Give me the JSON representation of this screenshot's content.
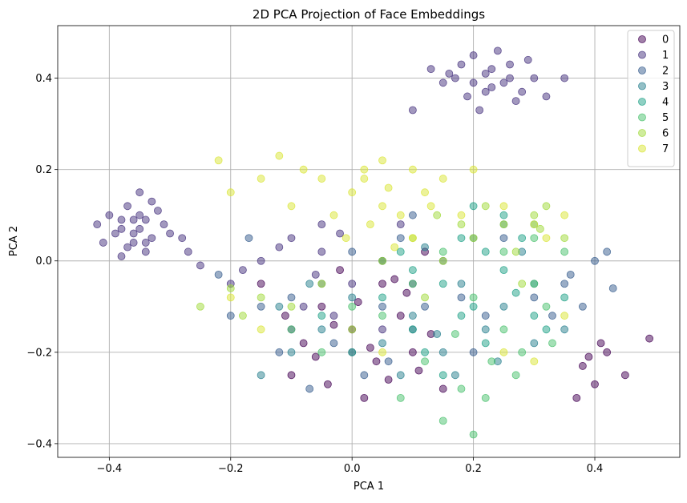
{
  "chart_data": {
    "type": "scatter",
    "title": "2D PCA Projection of Face Embeddings",
    "xlabel": "PCA 1",
    "ylabel": "PCA 2",
    "xlim": [
      -0.485,
      0.54
    ],
    "ylim": [
      -0.43,
      0.515
    ],
    "xticks": [
      -0.4,
      -0.2,
      0.0,
      0.2,
      0.4
    ],
    "xtick_labels": [
      "−0.4",
      "−0.2",
      "0.0",
      "0.2",
      "0.4"
    ],
    "yticks": [
      -0.4,
      -0.2,
      0.0,
      0.2,
      0.4
    ],
    "ytick_labels": [
      "−0.4",
      "−0.2",
      "0.0",
      "0.2",
      "0.4"
    ],
    "grid": true,
    "legend_position": "top-right",
    "marker_alpha": 0.5,
    "colormap": "viridis",
    "series": [
      {
        "name": "0",
        "color": "#440154",
        "points": [
          [
            0.0,
            -0.15
          ],
          [
            -0.05,
            -0.1
          ],
          [
            0.05,
            -0.05
          ],
          [
            0.1,
            -0.2
          ],
          [
            -0.1,
            -0.25
          ],
          [
            0.02,
            -0.3
          ],
          [
            0.08,
            -0.12
          ],
          [
            -0.02,
            -0.02
          ],
          [
            0.15,
            -0.28
          ],
          [
            -0.08,
            -0.18
          ],
          [
            0.12,
            0.02
          ],
          [
            0.04,
            -0.22
          ],
          [
            -0.15,
            -0.05
          ],
          [
            0.06,
            -0.26
          ],
          [
            0.38,
            -0.23
          ],
          [
            0.42,
            -0.2
          ],
          [
            0.45,
            -0.25
          ],
          [
            0.49,
            -0.17
          ],
          [
            0.4,
            -0.27
          ],
          [
            0.37,
            -0.3
          ],
          [
            0.41,
            -0.18
          ],
          [
            0.39,
            -0.21
          ],
          [
            -0.03,
            -0.14
          ],
          [
            0.09,
            -0.07
          ],
          [
            0.01,
            -0.09
          ],
          [
            -0.06,
            -0.21
          ],
          [
            0.13,
            -0.16
          ],
          [
            0.03,
            -0.19
          ],
          [
            0.07,
            -0.04
          ],
          [
            -0.11,
            -0.12
          ],
          [
            0.11,
            -0.24
          ],
          [
            -0.04,
            -0.27
          ]
        ]
      },
      {
        "name": "1",
        "color": "#46327e",
        "points": [
          [
            0.13,
            0.42
          ],
          [
            0.17,
            0.4
          ],
          [
            0.2,
            0.45
          ],
          [
            0.23,
            0.38
          ],
          [
            0.26,
            0.43
          ],
          [
            0.19,
            0.36
          ],
          [
            0.22,
            0.41
          ],
          [
            0.28,
            0.37
          ],
          [
            0.3,
            0.4
          ],
          [
            0.15,
            0.39
          ],
          [
            0.24,
            0.46
          ],
          [
            0.21,
            0.33
          ],
          [
            0.27,
            0.35
          ],
          [
            0.18,
            0.43
          ],
          [
            0.25,
            0.39
          ],
          [
            0.32,
            0.36
          ],
          [
            0.1,
            0.33
          ],
          [
            0.35,
            0.4
          ],
          [
            0.2,
            0.39
          ],
          [
            0.23,
            0.42
          ],
          [
            0.16,
            0.41
          ],
          [
            0.29,
            0.44
          ],
          [
            0.22,
            0.37
          ],
          [
            0.26,
            0.4
          ],
          [
            -0.38,
            0.07
          ],
          [
            -0.35,
            0.1
          ],
          [
            -0.33,
            0.05
          ],
          [
            -0.36,
            0.04
          ],
          [
            -0.4,
            0.1
          ],
          [
            -0.31,
            0.08
          ],
          [
            -0.37,
            0.12
          ],
          [
            -0.34,
            0.02
          ],
          [
            -0.39,
            0.06
          ],
          [
            -0.32,
            0.11
          ],
          [
            -0.35,
            0.07
          ],
          [
            -0.36,
            0.09
          ],
          [
            -0.41,
            0.04
          ],
          [
            -0.33,
            0.13
          ],
          [
            -0.3,
            0.06
          ],
          [
            -0.38,
            0.01
          ],
          [
            -0.35,
            0.15
          ],
          [
            -0.42,
            0.08
          ],
          [
            -0.28,
            0.05
          ],
          [
            -0.34,
            0.09
          ],
          [
            -0.37,
            0.03
          ],
          [
            -0.36,
            0.06
          ],
          [
            -0.34,
            0.04
          ],
          [
            -0.38,
            0.09
          ],
          [
            -0.27,
            0.02
          ],
          [
            -0.25,
            -0.01
          ],
          [
            -0.1,
            0.05
          ],
          [
            -0.05,
            0.02
          ],
          [
            0.0,
            -0.05
          ],
          [
            -0.15,
            0.0
          ],
          [
            -0.08,
            -0.1
          ],
          [
            -0.12,
            0.03
          ],
          [
            -0.06,
            -0.03
          ],
          [
            0.05,
            0.0
          ],
          [
            -0.02,
            0.06
          ],
          [
            -0.18,
            -0.02
          ],
          [
            -0.2,
            -0.05
          ],
          [
            -0.03,
            -0.12
          ],
          [
            0.0,
            -0.2
          ],
          [
            0.05,
            -0.15
          ],
          [
            -0.1,
            -0.15
          ],
          [
            0.08,
            0.08
          ],
          [
            0.1,
            -0.05
          ],
          [
            -0.05,
            0.08
          ]
        ]
      },
      {
        "name": "2",
        "color": "#365c8d",
        "points": [
          [
            -0.05,
            -0.05
          ],
          [
            0.05,
            -0.1
          ],
          [
            -0.1,
            -0.08
          ],
          [
            0.0,
            0.02
          ],
          [
            0.1,
            -0.15
          ],
          [
            -0.15,
            -0.1
          ],
          [
            0.08,
            0.05
          ],
          [
            -0.03,
            -0.18
          ],
          [
            0.12,
            -0.1
          ],
          [
            0.15,
            0.0
          ],
          [
            0.3,
            -0.08
          ],
          [
            0.35,
            -0.05
          ],
          [
            0.4,
            0.0
          ],
          [
            0.38,
            -0.1
          ],
          [
            0.42,
            0.02
          ],
          [
            0.43,
            -0.06
          ],
          [
            0.33,
            -0.12
          ],
          [
            0.36,
            -0.03
          ],
          [
            -0.2,
            -0.12
          ],
          [
            0.02,
            -0.25
          ],
          [
            -0.07,
            -0.28
          ],
          [
            0.18,
            -0.08
          ],
          [
            -0.12,
            -0.2
          ],
          [
            0.06,
            -0.22
          ],
          [
            0.2,
            -0.2
          ],
          [
            -0.17,
            0.05
          ],
          [
            -0.22,
            -0.03
          ],
          [
            0.25,
            0.05
          ],
          [
            0.22,
            -0.12
          ],
          [
            0.1,
            0.1
          ]
        ]
      },
      {
        "name": "3",
        "color": "#277f8e",
        "points": [
          [
            0.1,
            -0.12
          ],
          [
            0.18,
            -0.05
          ],
          [
            0.05,
            -0.18
          ],
          [
            -0.05,
            -0.15
          ],
          [
            0.15,
            -0.2
          ],
          [
            0.25,
            -0.1
          ],
          [
            0.12,
            0.03
          ],
          [
            -0.1,
            -0.2
          ],
          [
            0.22,
            -0.15
          ],
          [
            0.2,
            0.05
          ],
          [
            0.3,
            -0.18
          ],
          [
            0.08,
            -0.25
          ],
          [
            -0.15,
            -0.25
          ],
          [
            0.25,
            0.08
          ],
          [
            0.28,
            0.02
          ],
          [
            0.35,
            -0.15
          ],
          [
            0.0,
            -0.08
          ],
          [
            -0.07,
            -0.05
          ],
          [
            0.17,
            -0.25
          ],
          [
            0.05,
            0.0
          ],
          [
            -0.12,
            -0.1
          ],
          [
            0.3,
            -0.05
          ],
          [
            0.14,
            -0.16
          ],
          [
            0.24,
            -0.22
          ]
        ]
      },
      {
        "name": "4",
        "color": "#1fa187",
        "points": [
          [
            0.15,
            -0.05
          ],
          [
            0.2,
            -0.1
          ],
          [
            0.25,
            -0.02
          ],
          [
            0.1,
            -0.15
          ],
          [
            0.3,
            -0.12
          ],
          [
            0.05,
            -0.08
          ],
          [
            0.18,
            0.05
          ],
          [
            0.22,
            -0.18
          ],
          [
            0.28,
            0.05
          ],
          [
            0.12,
            -0.2
          ],
          [
            0.35,
            -0.08
          ],
          [
            0.08,
            0.02
          ],
          [
            0.25,
            0.1
          ],
          [
            0.2,
            0.12
          ],
          [
            0.3,
            0.08
          ],
          [
            -0.05,
            -0.12
          ],
          [
            0.0,
            -0.2
          ],
          [
            0.15,
            -0.25
          ],
          [
            0.32,
            -0.15
          ],
          [
            0.18,
            -0.12
          ],
          [
            0.22,
            0.02
          ],
          [
            0.27,
            -0.07
          ],
          [
            0.1,
            -0.02
          ]
        ]
      },
      {
        "name": "5",
        "color": "#4ac16d",
        "points": [
          [
            0.1,
            -0.05
          ],
          [
            0.15,
            0.02
          ],
          [
            0.2,
            -0.08
          ],
          [
            0.05,
            -0.12
          ],
          [
            0.25,
            -0.15
          ],
          [
            0.3,
            -0.05
          ],
          [
            0.12,
            -0.22
          ],
          [
            0.18,
            -0.28
          ],
          [
            0.22,
            -0.3
          ],
          [
            0.28,
            -0.2
          ],
          [
            0.32,
            -0.1
          ],
          [
            0.35,
            0.02
          ],
          [
            0.0,
            -0.1
          ],
          [
            -0.05,
            -0.2
          ],
          [
            0.08,
            -0.3
          ],
          [
            0.15,
            -0.35
          ],
          [
            0.2,
            -0.38
          ],
          [
            0.27,
            -0.25
          ],
          [
            0.33,
            -0.18
          ],
          [
            0.3,
            0.05
          ],
          [
            0.25,
            0.02
          ],
          [
            -0.1,
            -0.15
          ],
          [
            0.17,
            -0.16
          ],
          [
            0.23,
            -0.22
          ]
        ]
      },
      {
        "name": "6",
        "color": "#a0da39",
        "points": [
          [
            0.2,
            0.05
          ],
          [
            0.25,
            0.08
          ],
          [
            0.3,
            0.1
          ],
          [
            0.15,
            0.0
          ],
          [
            0.28,
            -0.05
          ],
          [
            0.1,
            0.05
          ],
          [
            0.32,
            0.12
          ],
          [
            0.05,
            0.0
          ],
          [
            -0.05,
            -0.05
          ],
          [
            -0.1,
            -0.1
          ],
          [
            -0.15,
            -0.08
          ],
          [
            -0.2,
            -0.06
          ],
          [
            -0.25,
            -0.1
          ],
          [
            0.35,
            0.05
          ],
          [
            0.22,
            0.12
          ],
          [
            0.18,
            0.08
          ],
          [
            0.12,
            -0.08
          ],
          [
            0.0,
            -0.15
          ],
          [
            0.27,
            0.02
          ],
          [
            0.31,
            0.07
          ],
          [
            -0.18,
            -0.12
          ],
          [
            0.14,
            0.1
          ]
        ]
      },
      {
        "name": "7",
        "color": "#d9e535",
        "points": [
          [
            0.05,
            0.12
          ],
          [
            0.08,
            0.1
          ],
          [
            0.0,
            0.15
          ],
          [
            0.1,
            0.05
          ],
          [
            0.03,
            0.08
          ],
          [
            -0.05,
            0.18
          ],
          [
            0.12,
            0.15
          ],
          [
            0.02,
            0.2
          ],
          [
            -0.1,
            0.12
          ],
          [
            0.15,
            0.18
          ],
          [
            0.07,
            0.03
          ],
          [
            -0.08,
            0.2
          ],
          [
            0.18,
            0.1
          ],
          [
            -0.15,
            0.18
          ],
          [
            -0.2,
            0.15
          ],
          [
            -0.12,
            0.23
          ],
          [
            0.05,
            0.22
          ],
          [
            0.1,
            0.2
          ],
          [
            -0.03,
            0.1
          ],
          [
            0.25,
            0.12
          ],
          [
            0.3,
            0.08
          ],
          [
            0.35,
            0.1
          ],
          [
            0.32,
            0.05
          ],
          [
            -0.2,
            -0.08
          ],
          [
            -0.15,
            -0.15
          ],
          [
            0.05,
            -0.2
          ],
          [
            0.25,
            -0.2
          ],
          [
            0.3,
            -0.22
          ],
          [
            0.35,
            -0.12
          ],
          [
            -0.22,
            0.22
          ],
          [
            0.06,
            0.16
          ],
          [
            0.13,
            0.12
          ],
          [
            -0.01,
            0.05
          ],
          [
            0.02,
            0.18
          ],
          [
            0.2,
            0.2
          ]
        ]
      }
    ]
  }
}
